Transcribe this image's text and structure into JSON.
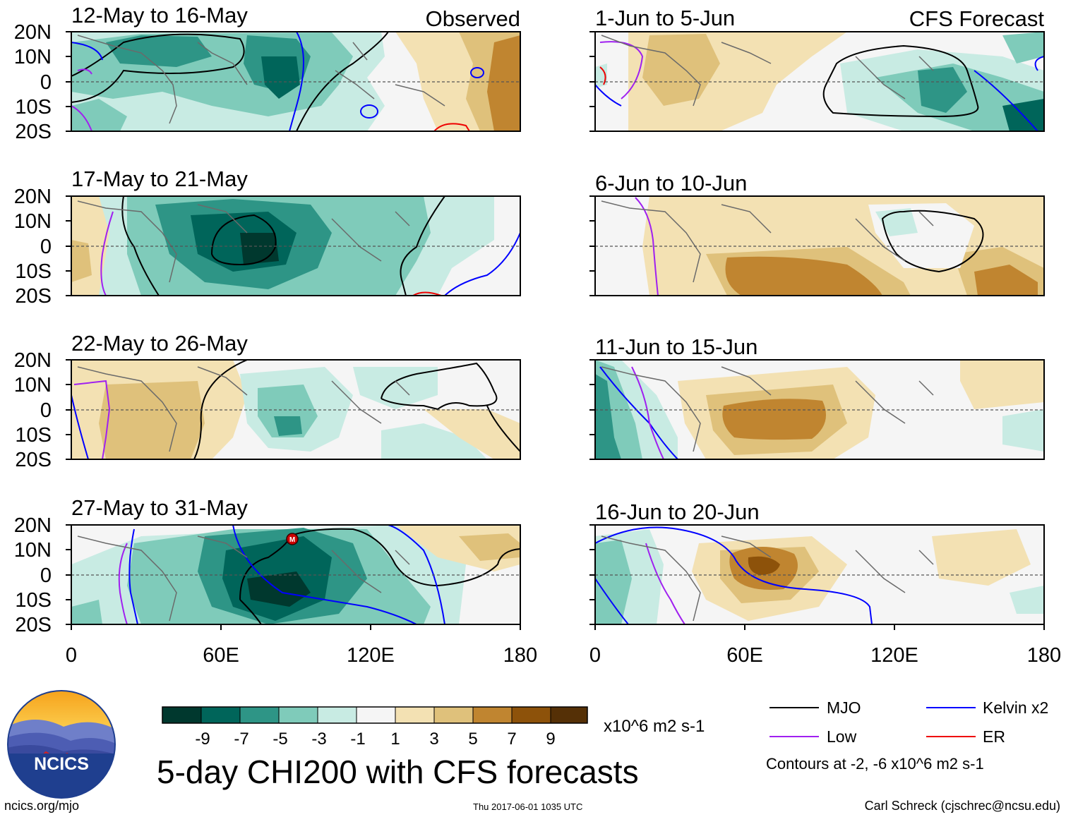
{
  "title": "5-day CHI200 with CFS forecasts",
  "headers": {
    "observed": "Observed",
    "forecast": "CFS Forecast"
  },
  "panels": [
    {
      "period": "12-May to 16-May",
      "kind": "observed"
    },
    {
      "period": "17-May to 21-May",
      "kind": "observed"
    },
    {
      "period": "22-May to 26-May",
      "kind": "observed"
    },
    {
      "period": "27-May to 31-May",
      "kind": "observed"
    },
    {
      "period": "1-Jun to 5-Jun",
      "kind": "forecast"
    },
    {
      "period": "6-Jun to 10-Jun",
      "kind": "forecast"
    },
    {
      "period": "11-Jun to 15-Jun",
      "kind": "forecast"
    },
    {
      "period": "16-Jun to 20-Jun",
      "kind": "forecast"
    }
  ],
  "axes": {
    "lat_ticks": [
      "20N",
      "10N",
      "0",
      "10S",
      "20S"
    ],
    "lon_ticks": [
      "0",
      "60E",
      "120E",
      "180"
    ],
    "lon_range": [
      0,
      180
    ],
    "lat_range": [
      -20,
      20
    ]
  },
  "colorbar": {
    "labels": [
      "-9",
      "-7",
      "-5",
      "-3",
      "-1",
      "1",
      "3",
      "5",
      "7",
      "9"
    ],
    "units": "x10^6 m2 s-1",
    "colors": [
      "#00382e",
      "#00655a",
      "#2e9586",
      "#7fcbba",
      "#c8ebe3",
      "#f5f5f5",
      "#f3e1b3",
      "#dfc17b",
      "#c08530",
      "#8d520a",
      "#553006"
    ]
  },
  "legend": {
    "items": [
      {
        "label": "MJO",
        "color": "#000000"
      },
      {
        "label": "Kelvin x2",
        "color": "#0000ff"
      },
      {
        "label": "Low",
        "color": "#a020f0"
      },
      {
        "label": "ER",
        "color": "#ee0000"
      }
    ],
    "note": "Contours at -2, -6 x10^6 m2 s-1"
  },
  "logo": {
    "text": "NCICS"
  },
  "footer": {
    "left": "ncics.org/mjo",
    "center": "Thu 2017-06-01 1035 UTC",
    "right": "Carl Schreck (cjschrec@ncsu.edu)"
  }
}
